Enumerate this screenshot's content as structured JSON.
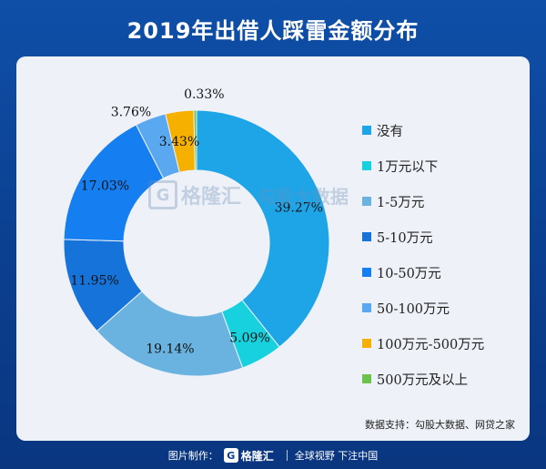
{
  "header": {
    "title": "2019年出借人踩雷金额分布"
  },
  "chart_data": {
    "type": "pie",
    "donut": true,
    "title": "2019年出借人踩雷金额分布",
    "legend_position": "right",
    "categories": [
      "没有",
      "1万元以下",
      "1-5万元",
      "5-10万元",
      "10-50万元",
      "50-100万元",
      "100万元-500万元",
      "500万元及以上"
    ],
    "values": [
      39.27,
      5.09,
      19.14,
      11.95,
      17.03,
      3.76,
      3.43,
      0.33
    ],
    "value_labels": [
      "39.27%",
      "5.09%",
      "19.14%",
      "11.95%",
      "17.03%",
      "3.76%",
      "3.43%",
      "0.33%"
    ],
    "colors": [
      "#1ea5e8",
      "#17d1de",
      "#6ab3e0",
      "#1573d9",
      "#157ef0",
      "#5aa8f0",
      "#f5b000",
      "#6cc24a"
    ]
  },
  "watermark": {
    "brand_cn": "格隆汇",
    "brand_url": "www.gelonghui.com",
    "partner_cn": "勾股大数据",
    "partner_url": "www.gogudata.com"
  },
  "source": {
    "text": "数据支持：勾股大数据、网贷之家"
  },
  "footer": {
    "label": "图片制作：",
    "logo_mark": "G",
    "logo_text": "格隆汇",
    "slogan": "全球视野 下注中国"
  }
}
